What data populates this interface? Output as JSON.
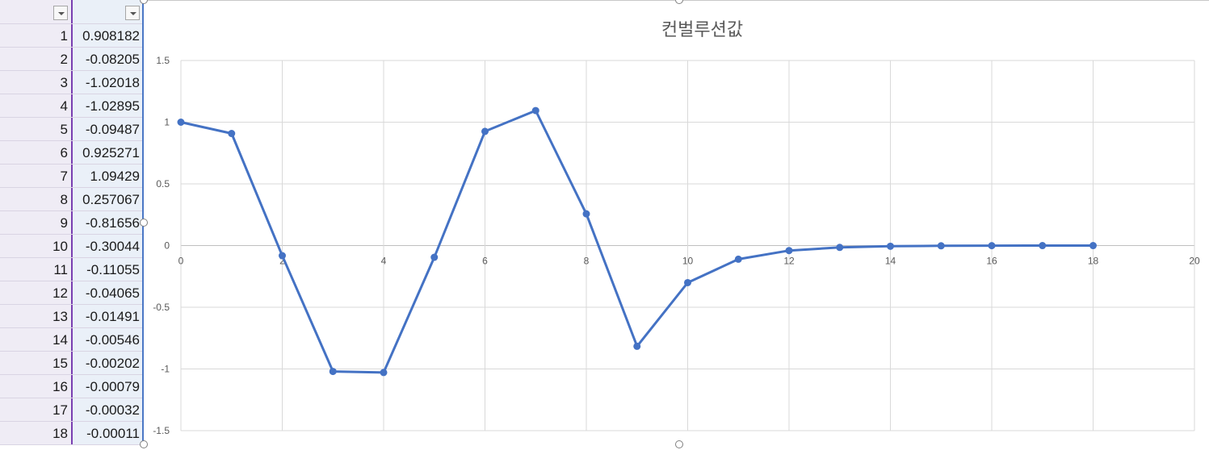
{
  "sheet": {
    "rows": [
      {
        "index": "1",
        "value": "0.908182"
      },
      {
        "index": "2",
        "value": "-0.08205"
      },
      {
        "index": "3",
        "value": "-1.02018"
      },
      {
        "index": "4",
        "value": "-1.02895"
      },
      {
        "index": "5",
        "value": "-0.09487"
      },
      {
        "index": "6",
        "value": "0.925271"
      },
      {
        "index": "7",
        "value": "1.09429"
      },
      {
        "index": "8",
        "value": "0.257067"
      },
      {
        "index": "9",
        "value": "-0.81656"
      },
      {
        "index": "10",
        "value": "-0.30044"
      },
      {
        "index": "11",
        "value": "-0.11055"
      },
      {
        "index": "12",
        "value": "-0.04065"
      },
      {
        "index": "13",
        "value": "-0.01491"
      },
      {
        "index": "14",
        "value": "-0.00546"
      },
      {
        "index": "15",
        "value": "-0.00202"
      },
      {
        "index": "16",
        "value": "-0.00079"
      },
      {
        "index": "17",
        "value": "-0.00032"
      },
      {
        "index": "18",
        "value": "-0.00011"
      }
    ],
    "colors": {
      "col_a_bg": "#efecf5",
      "col_b_bg": "#eaf0f8",
      "col_a_border": "#7a3fb1",
      "col_b_border": "#4b78c6"
    }
  },
  "chart_data": {
    "type": "line",
    "title": "컨벌루션값",
    "xlabel": "",
    "ylabel": "",
    "xlim": [
      0,
      20
    ],
    "ylim": [
      -1.5,
      1.5
    ],
    "x_ticks": [
      "0",
      "2",
      "4",
      "6",
      "8",
      "10",
      "12",
      "14",
      "16",
      "18",
      "20"
    ],
    "y_ticks": [
      "1.5",
      "1",
      "0.5",
      "0",
      "-0.5",
      "-1",
      "-1.5"
    ],
    "grid": true,
    "series": [
      {
        "color": "#4472c4",
        "markers": true,
        "x": [
          0,
          1,
          2,
          3,
          4,
          5,
          6,
          7,
          8,
          9,
          10,
          11,
          12,
          13,
          14,
          15,
          16,
          17,
          18
        ],
        "y": [
          1,
          0.908182,
          -0.08205,
          -1.02018,
          -1.02895,
          -0.09487,
          0.925271,
          1.09429,
          0.257067,
          -0.81656,
          -0.30044,
          -0.11055,
          -0.04065,
          -0.01491,
          -0.00546,
          -0.00202,
          -0.00079,
          -0.00032,
          -0.00011
        ]
      }
    ]
  }
}
